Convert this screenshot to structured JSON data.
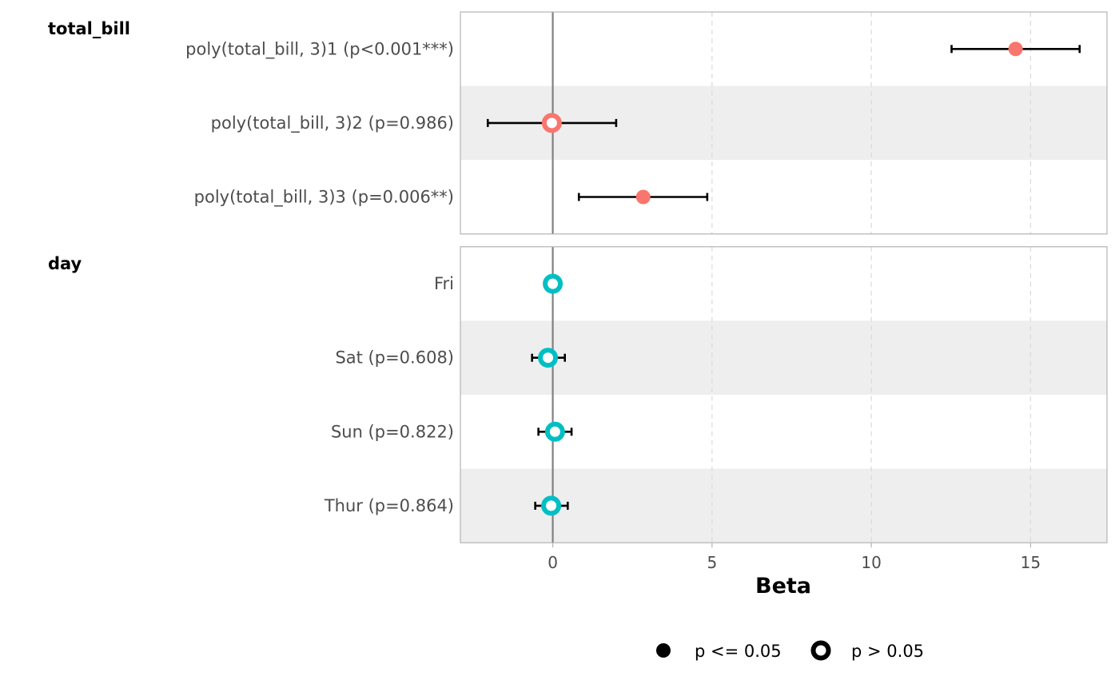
{
  "chart_data": {
    "type": "forest",
    "xlabel": "Beta",
    "xlim": [
      -2.9,
      17.4
    ],
    "x_ticks": [
      0,
      5,
      10,
      15
    ],
    "grid": "vertical dashed",
    "reference_line_x": 0,
    "legend_placement": "bottom",
    "colors": {
      "total_bill": "#F8766D",
      "day": "#00BFC4",
      "stripe": "#eeeeee",
      "panel_border": "#b3b3b3",
      "ref_line": "#808080",
      "grid": "#d9d9d9"
    },
    "groups": [
      {
        "name": "total_bill",
        "color_key": "total_bill",
        "rows": [
          {
            "label": "poly(total_bill, 3)1 (p<0.001***)",
            "estimate": 14.53,
            "ci_low": 12.52,
            "ci_high": 16.54,
            "significant": true
          },
          {
            "label": "poly(total_bill, 3)2 (p=0.986)",
            "estimate": -0.03,
            "ci_low": -2.04,
            "ci_high": 1.99,
            "significant": false
          },
          {
            "label": "poly(total_bill, 3)3 (p=0.006**)",
            "estimate": 2.84,
            "ci_low": 0.82,
            "ci_high": 4.85,
            "significant": true
          }
        ]
      },
      {
        "name": "day",
        "color_key": "day",
        "rows": [
          {
            "label": "Fri",
            "estimate": 0.0,
            "ci_low": null,
            "ci_high": null,
            "significant": false
          },
          {
            "label": "Sat (p=0.608)",
            "estimate": -0.15,
            "ci_low": -0.65,
            "ci_high": 0.38,
            "significant": false
          },
          {
            "label": "Sun (p=0.822)",
            "estimate": 0.07,
            "ci_low": -0.45,
            "ci_high": 0.59,
            "significant": false
          },
          {
            "label": "Thur (p=0.864)",
            "estimate": -0.05,
            "ci_low": -0.55,
            "ci_high": 0.47,
            "significant": false
          }
        ]
      }
    ],
    "legend": [
      {
        "label": "p <= 0.05",
        "marker": "filled"
      },
      {
        "label": "p > 0.05",
        "marker": "open"
      }
    ]
  }
}
